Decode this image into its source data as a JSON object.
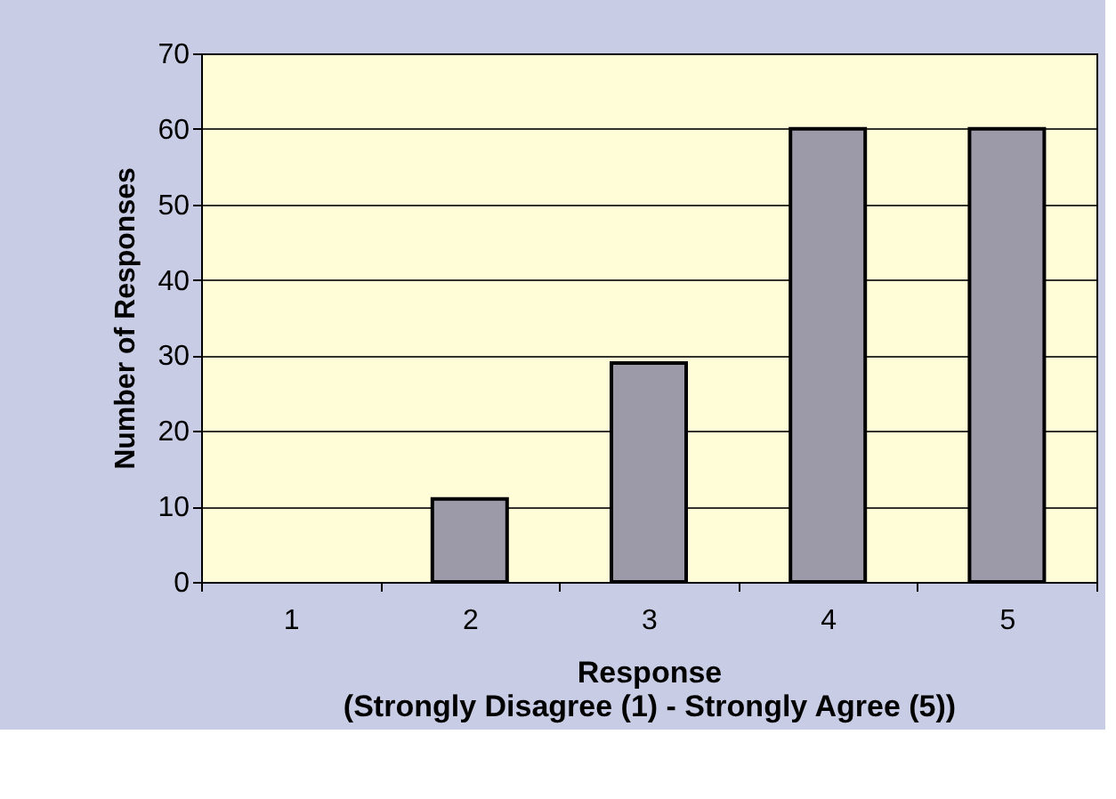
{
  "chart_data": {
    "type": "bar",
    "xlabel": "Response\n(Strongly Disagree (1) - Strongly Agree (5))",
    "ylabel": "Number of Responses",
    "categories": [
      "1",
      "2",
      "3",
      "4",
      "5"
    ],
    "values": [
      0,
      11,
      29,
      60,
      60
    ],
    "color": "#9c99a8",
    "ylim": [
      0,
      70
    ],
    "yticks": [
      0,
      10,
      20,
      30,
      40,
      50,
      60,
      70
    ],
    "grid": "y"
  }
}
